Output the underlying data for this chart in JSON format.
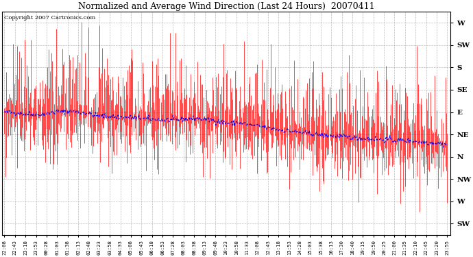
{
  "title": "Normalized and Average Wind Direction (Last 24 Hours)  20070411",
  "copyright": "Copyright 2007 Cartronics.com",
  "ytick_labels": [
    "W",
    "SW",
    "S",
    "SE",
    "E",
    "NE",
    "N",
    "NW",
    "W",
    "SW"
  ],
  "ytick_values": [
    9,
    8,
    7,
    6,
    5,
    4,
    3,
    2,
    1,
    0
  ],
  "ylim": [
    -0.5,
    9.5
  ],
  "background_color": "#ffffff",
  "grid_color": "#aaaaaa",
  "bar_color": "#ff0000",
  "avg_color": "#0000ff",
  "xtick_labels": [
    "22:08",
    "22:43",
    "23:18",
    "23:53",
    "00:28",
    "01:03",
    "01:38",
    "02:13",
    "02:48",
    "03:23",
    "03:58",
    "04:33",
    "05:08",
    "05:43",
    "06:18",
    "06:53",
    "07:28",
    "08:03",
    "08:38",
    "09:13",
    "09:48",
    "10:23",
    "10:58",
    "11:33",
    "12:08",
    "12:43",
    "13:18",
    "13:53",
    "14:28",
    "15:03",
    "15:38",
    "16:13",
    "17:30",
    "18:40",
    "19:15",
    "19:50",
    "20:25",
    "21:00",
    "21:35",
    "22:10",
    "22:45",
    "23:20",
    "23:55"
  ],
  "seed": 42,
  "n_points": 550,
  "figsize": [
    6.9,
    3.75
  ],
  "dpi": 100
}
